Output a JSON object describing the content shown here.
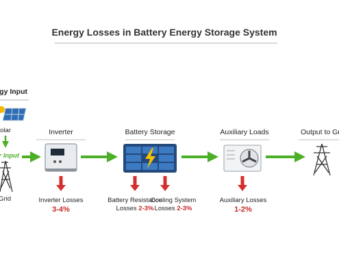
{
  "title": "Energy Losses in Battery Energy Storage System",
  "source": {
    "label": "Energy Input",
    "solar": "Solar",
    "power": "Power Input",
    "grid": "Grid"
  },
  "stages": [
    {
      "label": "Inverter"
    },
    {
      "label": "Battery Storage"
    },
    {
      "label": "Auxiliary Loads"
    },
    {
      "label": "Output to Grid"
    }
  ],
  "losses": [
    {
      "lines": [
        "Inverter Losses"
      ],
      "value": "3-4%"
    },
    {
      "lines": [
        "Battery Resistance",
        "Losses"
      ],
      "value": "2-3%"
    },
    {
      "lines": [
        "Cooling System",
        "Losses"
      ],
      "value": "2-3%"
    },
    {
      "lines": [
        "Auxiliary Losses"
      ],
      "value": "1-2%"
    }
  ]
}
